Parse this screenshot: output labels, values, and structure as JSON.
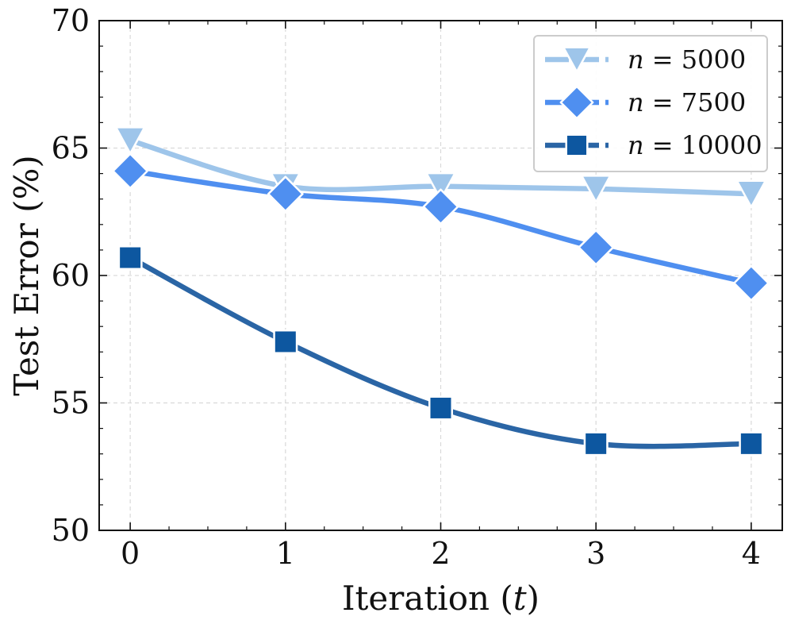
{
  "chart_data": {
    "type": "line",
    "title": "",
    "xlabel": "Iteration (t)",
    "xlabel_parts": {
      "prefix": "Iteration (",
      "var": "t",
      "suffix": ")"
    },
    "ylabel": "Test Error (%)",
    "x": [
      0,
      1,
      2,
      3,
      4
    ],
    "xticks": [
      "0",
      "1",
      "2",
      "3",
      "4"
    ],
    "xlim": [
      -0.2,
      4.2
    ],
    "ylim": [
      50,
      70
    ],
    "yticks": [
      "50",
      "55",
      "60",
      "65",
      "70"
    ],
    "grid": true,
    "legend_position": "top-right",
    "series": [
      {
        "name": "n = 5000",
        "label_var": "n",
        "label_value": "5000",
        "marker": "triangle-down",
        "color": "#9ec5ea",
        "values": [
          65.3,
          63.5,
          63.5,
          63.4,
          63.2
        ]
      },
      {
        "name": "n = 7500",
        "label_var": "n",
        "label_value": "7500",
        "marker": "diamond",
        "color": "#4f8ff0",
        "values": [
          64.1,
          63.2,
          62.7,
          61.1,
          59.7
        ]
      },
      {
        "name": "n = 10000",
        "label_var": "n",
        "label_value": "10000",
        "marker": "square",
        "color": "#0d57a0",
        "line_color": "#2a65a5",
        "values": [
          60.7,
          57.4,
          54.8,
          53.4,
          53.4
        ]
      }
    ]
  }
}
